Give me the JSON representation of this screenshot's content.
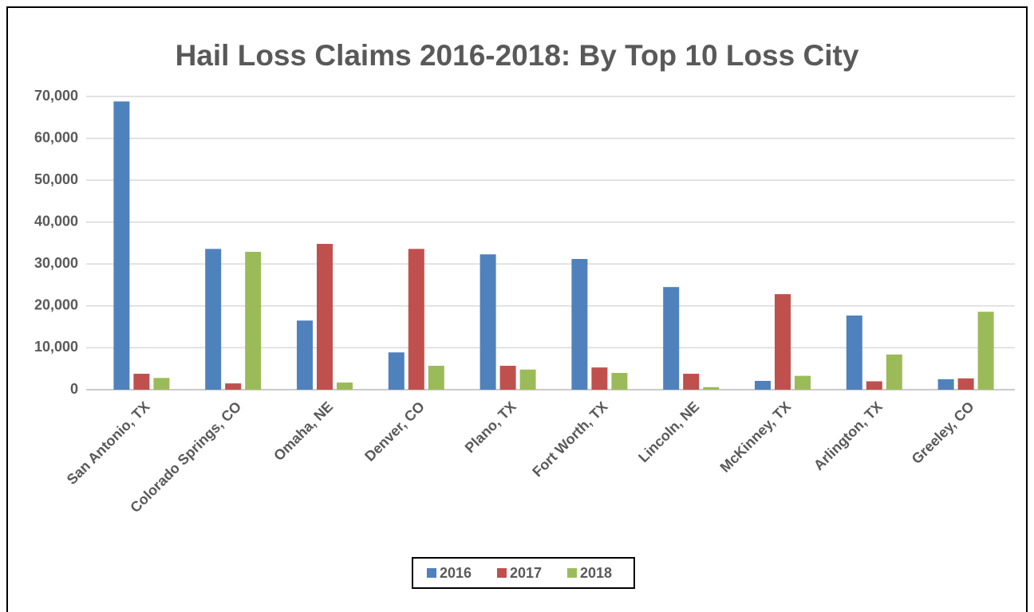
{
  "chart_data": {
    "type": "bar",
    "title": "Hail Loss Claims 2016-2018: By Top 10 Loss City",
    "categories": [
      "San Antonio, TX",
      "Colorado Springs, CO",
      "Omaha, NE",
      "Denver, CO",
      "Plano, TX",
      "Fort Worth, TX",
      "Lincoln, NE",
      "McKinney, TX",
      "Arlington, TX",
      "Greeley, CO"
    ],
    "series": [
      {
        "name": "2016",
        "color": "#4f81bd",
        "values": [
          68800,
          33600,
          16500,
          8900,
          32300,
          31200,
          24500,
          2100,
          17700,
          2500
        ]
      },
      {
        "name": "2017",
        "color": "#c0504d",
        "values": [
          3800,
          1500,
          34800,
          33600,
          5700,
          5300,
          3800,
          22800,
          2000,
          2700
        ]
      },
      {
        "name": "2018",
        "color": "#9bbb59",
        "values": [
          2800,
          32900,
          1700,
          5700,
          4800,
          4000,
          600,
          3300,
          8400,
          18600
        ]
      }
    ],
    "ylim": [
      0,
      70000
    ],
    "yticks": [
      0,
      {
        "value": 10000,
        "label": "10,000"
      },
      {
        "value": 20000,
        "label": "20,000"
      },
      {
        "value": 30000,
        "label": "30,000"
      },
      {
        "value": 40000,
        "label": "40,000"
      },
      {
        "value": 50000,
        "label": "50,000"
      },
      {
        "value": 60000,
        "label": "60,000"
      },
      {
        "value": 70000,
        "label": "70,000"
      }
    ],
    "grid": true,
    "legend": "bottom"
  }
}
